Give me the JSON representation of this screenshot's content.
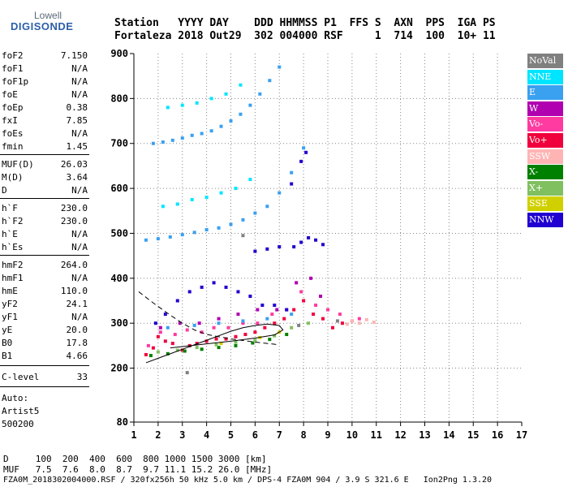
{
  "logo": {
    "line1": "Lowell",
    "line2": "DIGISONDE"
  },
  "header": {
    "line1": "Station   YYYY DAY    DDD HHMMSS P1  FFS S  AXN  PPS  IGA PS",
    "line2": "Fortaleza 2018 Out29  302 004000 RSF     1  714  100  10+ 11"
  },
  "params": [
    {
      "k": "foF2",
      "v": "7.150"
    },
    {
      "k": "foF1",
      "v": "N/A"
    },
    {
      "k": "foF1p",
      "v": "N/A"
    },
    {
      "k": "foE",
      "v": "N/A"
    },
    {
      "k": "foEp",
      "v": "0.38"
    },
    {
      "k": "fxI",
      "v": "7.85"
    },
    {
      "k": "foEs",
      "v": "N/A"
    },
    {
      "k": "fmin",
      "v": "1.45"
    },
    {
      "k": "MUF(D)",
      "v": "26.03"
    },
    {
      "k": "M(D)",
      "v": "3.64"
    },
    {
      "k": "D",
      "v": "N/A"
    },
    {
      "k": "h`F",
      "v": "230.0"
    },
    {
      "k": "h`F2",
      "v": "230.0"
    },
    {
      "k": "h`E",
      "v": "N/A"
    },
    {
      "k": "h`Es",
      "v": "N/A"
    },
    {
      "k": "hmF2",
      "v": "264.0"
    },
    {
      "k": "hmF1",
      "v": "N/A"
    },
    {
      "k": "hmE",
      "v": "110.0"
    },
    {
      "k": "yF2",
      "v": "24.1"
    },
    {
      "k": "yF1",
      "v": "N/A"
    },
    {
      "k": "yE",
      "v": "20.0"
    },
    {
      "k": "B0",
      "v": "17.8"
    },
    {
      "k": "B1",
      "v": "4.66"
    },
    {
      "k": "C-level",
      "v": "33"
    }
  ],
  "autoscale": {
    "l1": "Auto:",
    "l2": "Artist5",
    "l3": "500200"
  },
  "bottom": {
    "d_row": "D     100  200  400  600  800 1000 1500 3000 [km]",
    "muf_row": "MUF   7.5  7.6  8.0  8.7  9.7 11.1 15.2 26.0 [MHz]",
    "footer": "FZA0M_2018302004000.RSF / 320fx256h 50 kHz 5.0 km / DPS-4 FZA0M 904 / 3.9 S 321.6 E   Ion2Png 1.3.20"
  },
  "legend": [
    {
      "label": "NoVal",
      "color": "#808080",
      "text": "#ffffff"
    },
    {
      "label": "NNE",
      "color": "#00e5ff",
      "text": "#ffffff"
    },
    {
      "label": "E",
      "color": "#3aa0f0",
      "text": "#ffffff"
    },
    {
      "label": "W",
      "color": "#b000b0",
      "text": "#ffffff"
    },
    {
      "label": "Vo-",
      "color": "#ff3aa0",
      "text": "#ffffff"
    },
    {
      "label": "Vo+",
      "color": "#f0003c",
      "text": "#ffffff"
    },
    {
      "label": "SSW",
      "color": "#ffb4b4",
      "text": "#ffffff"
    },
    {
      "label": "X-",
      "color": "#008000",
      "text": "#ffffff"
    },
    {
      "label": "X+",
      "color": "#80c060",
      "text": "#ffffff"
    },
    {
      "label": "SSE",
      "color": "#d0d000",
      "text": "#ffffff"
    },
    {
      "label": "NNW",
      "color": "#2000d0",
      "text": "#ffffff"
    }
  ],
  "chart_data": {
    "type": "scatter",
    "xlim": [
      1,
      17
    ],
    "ylim": [
      80,
      900
    ],
    "xticks": [
      1,
      2,
      3,
      4,
      5,
      6,
      7,
      8,
      9,
      10,
      11,
      12,
      13,
      14,
      15,
      16,
      17
    ],
    "yticks": [
      80,
      200,
      300,
      400,
      500,
      600,
      700,
      800,
      900
    ],
    "grid": true,
    "series": [
      {
        "color": "#f0003c",
        "points": [
          [
            1.5,
            230
          ],
          [
            1.8,
            245
          ],
          [
            2.0,
            270
          ],
          [
            2.3,
            260
          ],
          [
            2.6,
            255
          ],
          [
            3.0,
            240
          ],
          [
            3.3,
            250
          ],
          [
            3.6,
            255
          ],
          [
            4.0,
            260
          ],
          [
            4.4,
            265
          ],
          [
            4.8,
            265
          ],
          [
            5.2,
            270
          ],
          [
            5.6,
            275
          ],
          [
            6.0,
            280
          ],
          [
            6.4,
            290
          ],
          [
            6.8,
            300
          ],
          [
            7.2,
            310
          ],
          [
            7.6,
            330
          ],
          [
            8.0,
            350
          ],
          [
            8.4,
            320
          ],
          [
            8.8,
            310
          ],
          [
            9.2,
            290
          ],
          [
            9.6,
            300
          ],
          [
            10.0,
            305
          ]
        ]
      },
      {
        "color": "#ff3aa0",
        "points": [
          [
            1.6,
            250
          ],
          [
            2.1,
            280
          ],
          [
            2.7,
            275
          ],
          [
            3.2,
            285
          ],
          [
            3.8,
            280
          ],
          [
            4.3,
            290
          ],
          [
            4.9,
            290
          ],
          [
            5.5,
            300
          ],
          [
            6.1,
            300
          ],
          [
            6.7,
            320
          ],
          [
            7.3,
            330
          ],
          [
            7.9,
            370
          ],
          [
            8.5,
            340
          ],
          [
            9.0,
            330
          ],
          [
            9.5,
            320
          ],
          [
            10.3,
            310
          ]
        ]
      },
      {
        "color": "#3aa0f0",
        "points": [
          [
            1.5,
            485
          ],
          [
            2.0,
            488
          ],
          [
            2.5,
            492
          ],
          [
            3.0,
            497
          ],
          [
            3.5,
            502
          ],
          [
            4.0,
            508
          ],
          [
            4.5,
            512
          ],
          [
            5.0,
            520
          ],
          [
            5.5,
            530
          ],
          [
            6.0,
            545
          ],
          [
            6.5,
            560
          ],
          [
            7.0,
            590
          ],
          [
            7.5,
            635
          ],
          [
            8.0,
            690
          ],
          [
            1.8,
            700
          ],
          [
            2.2,
            703
          ],
          [
            2.6,
            707
          ],
          [
            3.0,
            712
          ],
          [
            3.4,
            718
          ],
          [
            3.8,
            722
          ],
          [
            4.2,
            728
          ],
          [
            4.6,
            738
          ],
          [
            5.0,
            750
          ],
          [
            5.4,
            765
          ],
          [
            5.8,
            785
          ],
          [
            6.2,
            810
          ],
          [
            6.6,
            840
          ],
          [
            7.0,
            870
          ],
          [
            2.4,
            290
          ],
          [
            3.5,
            295
          ],
          [
            4.5,
            300
          ],
          [
            5.5,
            305
          ],
          [
            6.5,
            310
          ],
          [
            7.5,
            320
          ]
        ]
      },
      {
        "color": "#00e5ff",
        "points": [
          [
            2.2,
            560
          ],
          [
            2.8,
            565
          ],
          [
            3.4,
            575
          ],
          [
            4.0,
            580
          ],
          [
            4.6,
            590
          ],
          [
            5.2,
            600
          ],
          [
            5.8,
            620
          ],
          [
            2.4,
            780
          ],
          [
            3.0,
            785
          ],
          [
            3.6,
            790
          ],
          [
            4.2,
            800
          ],
          [
            4.8,
            810
          ],
          [
            5.4,
            830
          ]
        ]
      },
      {
        "color": "#2000d0",
        "points": [
          [
            1.9,
            300
          ],
          [
            2.3,
            320
          ],
          [
            2.8,
            350
          ],
          [
            3.3,
            370
          ],
          [
            3.8,
            380
          ],
          [
            4.3,
            390
          ],
          [
            4.8,
            380
          ],
          [
            5.3,
            370
          ],
          [
            5.8,
            360
          ],
          [
            6.3,
            340
          ],
          [
            6.8,
            340
          ],
          [
            7.3,
            330
          ],
          [
            7.6,
            470
          ],
          [
            7.9,
            480
          ],
          [
            8.2,
            490
          ],
          [
            8.5,
            485
          ],
          [
            8.8,
            475
          ],
          [
            6.0,
            460
          ],
          [
            6.5,
            465
          ],
          [
            7.0,
            470
          ],
          [
            7.5,
            610
          ],
          [
            7.9,
            660
          ],
          [
            8.1,
            680
          ]
        ]
      },
      {
        "color": "#b000b0",
        "points": [
          [
            2.1,
            290
          ],
          [
            2.9,
            300
          ],
          [
            3.7,
            300
          ],
          [
            4.5,
            310
          ],
          [
            5.3,
            320
          ],
          [
            6.1,
            330
          ],
          [
            6.9,
            330
          ],
          [
            7.7,
            390
          ],
          [
            8.3,
            400
          ],
          [
            8.7,
            360
          ]
        ]
      },
      {
        "color": "#008000",
        "points": [
          [
            1.7,
            228
          ],
          [
            2.4,
            232
          ],
          [
            3.1,
            238
          ],
          [
            3.8,
            242
          ],
          [
            4.5,
            246
          ],
          [
            5.2,
            250
          ],
          [
            5.9,
            256
          ],
          [
            6.6,
            264
          ],
          [
            7.3,
            275
          ]
        ]
      },
      {
        "color": "#80c060",
        "points": [
          [
            2.0,
            236
          ],
          [
            2.8,
            240
          ],
          [
            3.6,
            246
          ],
          [
            4.4,
            252
          ],
          [
            5.2,
            258
          ],
          [
            6.0,
            262
          ],
          [
            6.8,
            272
          ],
          [
            7.5,
            290
          ],
          [
            8.2,
            300
          ]
        ]
      },
      {
        "color": "#ffb4b4",
        "points": [
          [
            10.0,
            305
          ],
          [
            10.3,
            300
          ],
          [
            10.6,
            308
          ],
          [
            10.9,
            302
          ],
          [
            9.8,
            298
          ]
        ]
      },
      {
        "color": "#808080",
        "points": [
          [
            3.2,
            190
          ],
          [
            5.5,
            495
          ],
          [
            7.8,
            295
          ],
          [
            9.4,
            305
          ]
        ]
      },
      {
        "color": "#d0d000",
        "points": [
          [
            4.6,
            255
          ],
          [
            6.2,
            268
          ],
          [
            7.0,
            280
          ]
        ]
      }
    ],
    "profile": [
      [
        1.5,
        212
      ],
      [
        2.0,
        222
      ],
      [
        2.5,
        232
      ],
      [
        3.0,
        242
      ],
      [
        3.5,
        252
      ],
      [
        4.0,
        262
      ],
      [
        4.5,
        272
      ],
      [
        5.0,
        282
      ],
      [
        5.5,
        290
      ],
      [
        6.0,
        295
      ],
      [
        6.5,
        298
      ],
      [
        7.0,
        295
      ],
      [
        7.15,
        285
      ],
      [
        6.8,
        274
      ],
      [
        6.0,
        267
      ],
      [
        5.0,
        260
      ],
      [
        4.0,
        254
      ],
      [
        3.0,
        248
      ],
      [
        2.5,
        245
      ]
    ],
    "dashed": [
      [
        1.2,
        370
      ],
      [
        1.8,
        345
      ],
      [
        2.5,
        318
      ],
      [
        3.0,
        300
      ],
      [
        3.5,
        285
      ],
      [
        4.0,
        275
      ],
      [
        5.0,
        265
      ],
      [
        6.0,
        258
      ],
      [
        7.0,
        252
      ]
    ]
  }
}
